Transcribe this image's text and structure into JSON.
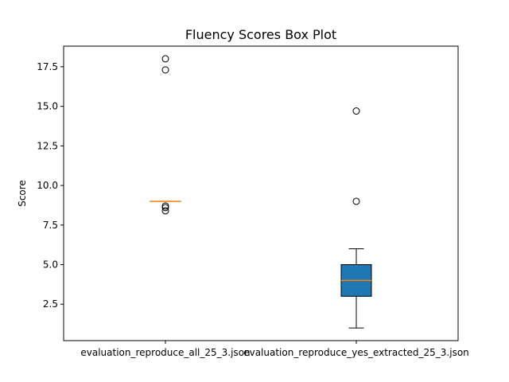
{
  "chart_data": {
    "type": "boxplot",
    "title": "Fluency Scores Box Plot",
    "xlabel": "",
    "ylabel": "Score",
    "ylim": [
      0.2,
      18.8
    ],
    "yticks": [
      2.5,
      5.0,
      7.5,
      10.0,
      12.5,
      15.0,
      17.5
    ],
    "ytick_labels": [
      "2.5",
      "5.0",
      "7.5",
      "10.0",
      "12.5",
      "15.0",
      "17.5"
    ],
    "grid": false,
    "categories": [
      "evaluation_reproduce_all_25_3.json",
      "evaluation_reproduce_yes_extracted_25_3.json"
    ],
    "boxes": [
      {
        "category": "evaluation_reproduce_all_25_3.json",
        "whisker_low": 9.0,
        "q1": 9.0,
        "median": 9.0,
        "q3": 9.0,
        "whisker_high": 9.0,
        "outliers": [
          18.0,
          17.3,
          8.7,
          8.6,
          8.4
        ]
      },
      {
        "category": "evaluation_reproduce_yes_extracted_25_3.json",
        "whisker_low": 1.0,
        "q1": 3.0,
        "median": 4.0,
        "q3": 5.0,
        "whisker_high": 6.0,
        "outliers": [
          14.7,
          9.0
        ]
      }
    ],
    "colors": {
      "box_fill": "#1f77b4",
      "median": "#ff7f0e",
      "edge": "#000000"
    }
  }
}
